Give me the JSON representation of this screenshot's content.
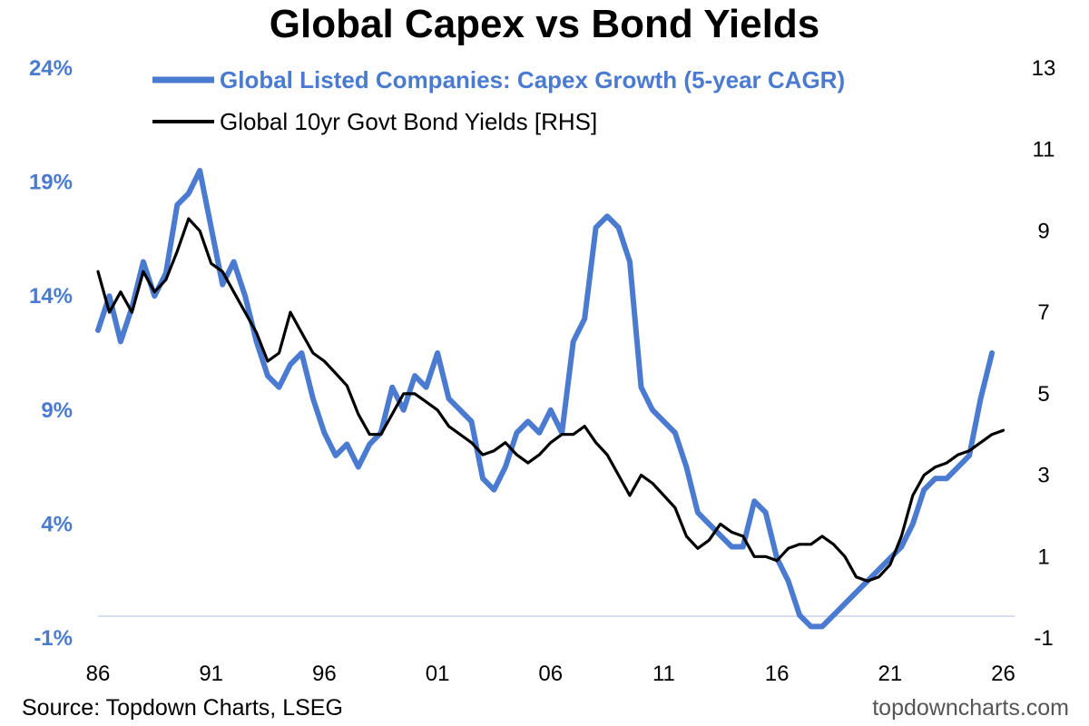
{
  "chart_data": {
    "type": "line",
    "title": "Global Capex vs Bond Yields",
    "source": "Source: Topdown Charts, LSEG",
    "watermark": "topdowncharts.com",
    "colors": {
      "capex": "#4a7bd0",
      "yields": "#000000",
      "baseline": "#c8d2e6"
    },
    "x_ticks": [
      "86",
      "91",
      "96",
      "01",
      "06",
      "11",
      "16",
      "21",
      "26"
    ],
    "x_range": [
      1986,
      2026.5
    ],
    "left_axis": {
      "ticks": [
        "24%",
        "19%",
        "14%",
        "9%",
        "4%",
        "-1%"
      ],
      "range": [
        -1,
        24
      ]
    },
    "right_axis": {
      "ticks": [
        "13",
        "11",
        "9",
        "7",
        "5",
        "3",
        "1",
        "-1"
      ],
      "range": [
        -1,
        13
      ]
    },
    "legend_placement": "top",
    "grid": false,
    "series": [
      {
        "name": "Global Listed Companies: Capex Growth (5-year CAGR)",
        "axis": "left",
        "x": [
          1986.0,
          1986.5,
          1987.0,
          1987.5,
          1988.0,
          1988.5,
          1989.0,
          1989.5,
          1990.0,
          1990.5,
          1991.0,
          1991.5,
          1992.0,
          1992.5,
          1993.0,
          1993.5,
          1994.0,
          1994.5,
          1995.0,
          1995.5,
          1996.0,
          1996.5,
          1997.0,
          1997.5,
          1998.0,
          1998.5,
          1999.0,
          1999.5,
          2000.0,
          2000.5,
          2001.0,
          2001.5,
          2002.0,
          2002.5,
          2003.0,
          2003.5,
          2004.0,
          2004.5,
          2005.0,
          2005.5,
          2006.0,
          2006.5,
          2007.0,
          2007.5,
          2008.0,
          2008.5,
          2009.0,
          2009.5,
          2010.0,
          2010.5,
          2011.0,
          2011.5,
          2012.0,
          2012.5,
          2013.0,
          2013.5,
          2014.0,
          2014.5,
          2015.0,
          2015.5,
          2016.0,
          2016.5,
          2017.0,
          2017.5,
          2018.0,
          2018.5,
          2019.0,
          2019.5,
          2020.0,
          2020.5,
          2021.0,
          2021.5,
          2022.0,
          2022.5,
          2023.0,
          2023.5,
          2024.0,
          2024.5,
          2025.0,
          2025.5
        ],
        "y": [
          12.5,
          14.0,
          12.0,
          13.5,
          15.5,
          14.0,
          15.0,
          18.0,
          18.5,
          19.5,
          17.0,
          14.5,
          15.5,
          14.0,
          12.0,
          10.5,
          10.0,
          11.0,
          11.5,
          9.5,
          8.0,
          7.0,
          7.5,
          6.5,
          7.5,
          8.0,
          10.0,
          9.0,
          10.5,
          10.0,
          11.5,
          9.5,
          9.0,
          8.5,
          6.0,
          5.5,
          6.5,
          8.0,
          8.5,
          8.0,
          9.0,
          8.0,
          12.0,
          13.0,
          17.0,
          17.5,
          17.0,
          15.5,
          10.0,
          9.0,
          8.5,
          8.0,
          6.5,
          4.5,
          4.0,
          3.5,
          3.0,
          3.0,
          5.0,
          4.5,
          2.5,
          1.5,
          0.0,
          -0.5,
          -0.5,
          0.0,
          0.5,
          1.0,
          1.5,
          2.0,
          2.5,
          3.0,
          4.0,
          5.5,
          6.0,
          6.0,
          6.5,
          7.0,
          9.5,
          11.5
        ]
      },
      {
        "name": "Global 10yr Govt Bond Yields [RHS]",
        "axis": "right",
        "x": [
          1986.0,
          1986.5,
          1987.0,
          1987.5,
          1988.0,
          1988.5,
          1989.0,
          1989.5,
          1990.0,
          1990.5,
          1991.0,
          1991.5,
          1992.0,
          1992.5,
          1993.0,
          1993.5,
          1994.0,
          1994.5,
          1995.0,
          1995.5,
          1996.0,
          1996.5,
          1997.0,
          1997.5,
          1998.0,
          1998.5,
          1999.0,
          1999.5,
          2000.0,
          2000.5,
          2001.0,
          2001.5,
          2002.0,
          2002.5,
          2003.0,
          2003.5,
          2004.0,
          2004.5,
          2005.0,
          2005.5,
          2006.0,
          2006.5,
          2007.0,
          2007.5,
          2008.0,
          2008.5,
          2009.0,
          2009.5,
          2010.0,
          2010.5,
          2011.0,
          2011.5,
          2012.0,
          2012.5,
          2013.0,
          2013.5,
          2014.0,
          2014.5,
          2015.0,
          2015.5,
          2016.0,
          2016.5,
          2017.0,
          2017.5,
          2018.0,
          2018.5,
          2019.0,
          2019.5,
          2020.0,
          2020.5,
          2021.0,
          2021.5,
          2022.0,
          2022.5,
          2023.0,
          2023.5,
          2024.0,
          2024.5,
          2025.0,
          2025.5,
          2026.0
        ],
        "y": [
          8.0,
          7.0,
          7.5,
          7.0,
          8.0,
          7.5,
          7.8,
          8.5,
          9.3,
          9.0,
          8.2,
          8.0,
          7.5,
          7.0,
          6.5,
          5.8,
          6.0,
          7.0,
          6.5,
          6.0,
          5.8,
          5.5,
          5.2,
          4.5,
          4.0,
          4.0,
          4.5,
          5.0,
          5.0,
          4.8,
          4.6,
          4.2,
          4.0,
          3.8,
          3.5,
          3.6,
          3.8,
          3.5,
          3.3,
          3.5,
          3.8,
          4.0,
          4.0,
          4.2,
          3.8,
          3.5,
          3.0,
          2.5,
          3.0,
          2.8,
          2.5,
          2.2,
          1.5,
          1.2,
          1.4,
          1.8,
          1.6,
          1.5,
          1.0,
          1.0,
          0.9,
          1.2,
          1.3,
          1.3,
          1.5,
          1.3,
          1.0,
          0.5,
          0.4,
          0.5,
          0.8,
          1.5,
          2.5,
          3.0,
          3.2,
          3.3,
          3.5,
          3.6,
          3.8,
          4.0,
          4.1
        ]
      }
    ]
  }
}
